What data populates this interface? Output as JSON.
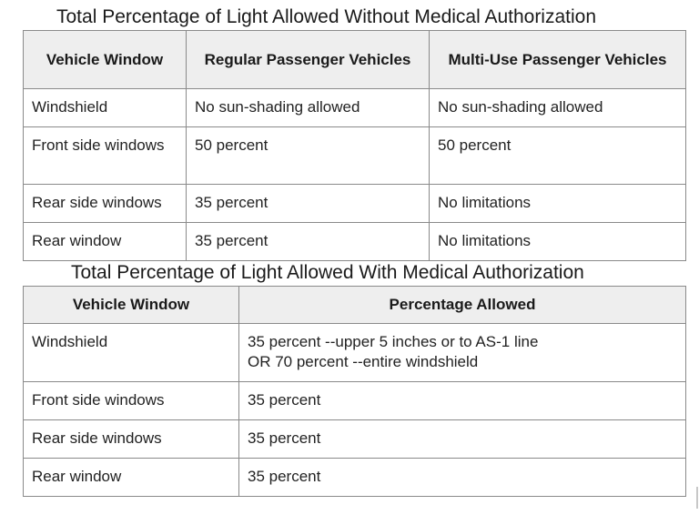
{
  "table1": {
    "caption": "Total Percentage of Light Allowed Without Medical Authorization",
    "headers": [
      "Vehicle Window",
      "Regular Passenger Vehicles",
      "Multi-Use Passenger Vehicles"
    ],
    "rows": [
      [
        "Windshield",
        "No sun-shading allowed",
        "No sun-shading allowed"
      ],
      [
        "Front side windows",
        "50 percent",
        "50 percent"
      ],
      [
        "Rear side windows",
        "35 percent",
        "No limitations"
      ],
      [
        "Rear window",
        "35 percent",
        "No limitations"
      ]
    ]
  },
  "table2": {
    "caption": "Total Percentage of Light Allowed With Medical Authorization",
    "headers": [
      "Vehicle Window",
      "Percentage Allowed"
    ],
    "rows": [
      [
        "Windshield",
        "35 percent --upper 5 inches or to AS-1 line",
        "OR 70 percent --entire windshield"
      ],
      [
        "Front side windows",
        "35 percent"
      ],
      [
        "Rear side windows",
        "35 percent"
      ],
      [
        "Rear window",
        "35 percent"
      ]
    ]
  }
}
